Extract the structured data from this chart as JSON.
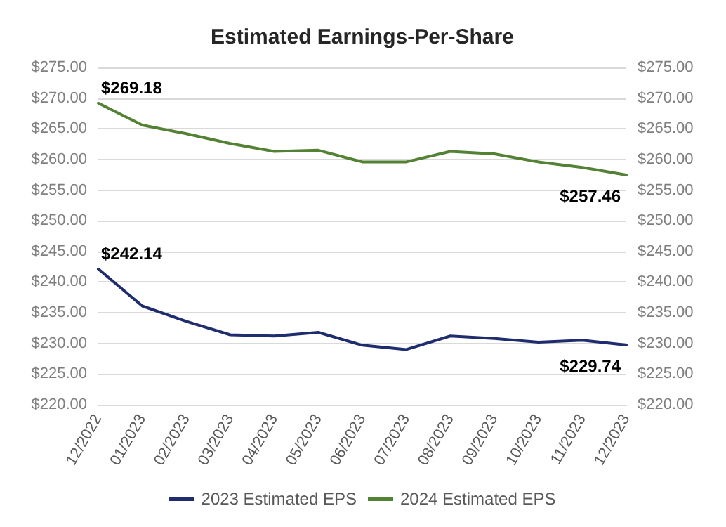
{
  "chart_data": {
    "type": "line",
    "title": "Estimated Earnings-Per-Share",
    "categories": [
      "12/2022",
      "01/2023",
      "02/2023",
      "03/2023",
      "04/2023",
      "05/2023",
      "06/2023",
      "07/2023",
      "08/2023",
      "09/2023",
      "10/2023",
      "11/2023",
      "12/2023"
    ],
    "series": [
      {
        "name": "2023 Estimated EPS",
        "color": "#1f2d6e",
        "values": [
          242.14,
          236.1,
          233.6,
          231.4,
          231.2,
          231.8,
          229.7,
          229.0,
          231.2,
          230.8,
          230.2,
          230.5,
          229.74
        ],
        "value_labels": [
          "$242.14",
          null,
          null,
          null,
          null,
          null,
          null,
          null,
          null,
          null,
          null,
          null,
          "$229.74"
        ]
      },
      {
        "name": "2024 Estimated EPS",
        "color": "#548235",
        "values": [
          269.18,
          265.6,
          264.2,
          262.6,
          261.3,
          261.5,
          259.6,
          259.6,
          261.3,
          260.9,
          259.6,
          258.7,
          257.46
        ],
        "value_labels": [
          "$269.18",
          null,
          null,
          null,
          null,
          null,
          null,
          null,
          null,
          null,
          null,
          null,
          "$257.46"
        ]
      }
    ],
    "ylim": [
      220,
      275
    ],
    "yticks": [
      {
        "value": 220,
        "label": "$220.00"
      },
      {
        "value": 225,
        "label": "$225.00"
      },
      {
        "value": 230,
        "label": "$230.00"
      },
      {
        "value": 235,
        "label": "$235.00"
      },
      {
        "value": 240,
        "label": "$240.00"
      },
      {
        "value": 245,
        "label": "$245.00"
      },
      {
        "value": 250,
        "label": "$250.00"
      },
      {
        "value": 255,
        "label": "$255.00"
      },
      {
        "value": 260,
        "label": "$260.00"
      },
      {
        "value": 265,
        "label": "$265.00"
      },
      {
        "value": 270,
        "label": "$270.00"
      },
      {
        "value": 275,
        "label": "$275.00"
      }
    ],
    "y2lim": [
      220,
      275
    ],
    "y2ticks": [
      {
        "value": 220,
        "label": "$220.00"
      },
      {
        "value": 225,
        "label": "$225.00"
      },
      {
        "value": 230,
        "label": "$230.00"
      },
      {
        "value": 235,
        "label": "$235.00"
      },
      {
        "value": 240,
        "label": "$240.00"
      },
      {
        "value": 245,
        "label": "$245.00"
      },
      {
        "value": 250,
        "label": "$250.00"
      },
      {
        "value": 255,
        "label": "$255.00"
      },
      {
        "value": 260,
        "label": "$260.00"
      },
      {
        "value": 265,
        "label": "$265.00"
      },
      {
        "value": 270,
        "label": "$270.00"
      },
      {
        "value": 275,
        "label": "$275.00"
      }
    ],
    "grid": "y",
    "legend": "bottom",
    "marker": "none",
    "line_style": "solid"
  }
}
